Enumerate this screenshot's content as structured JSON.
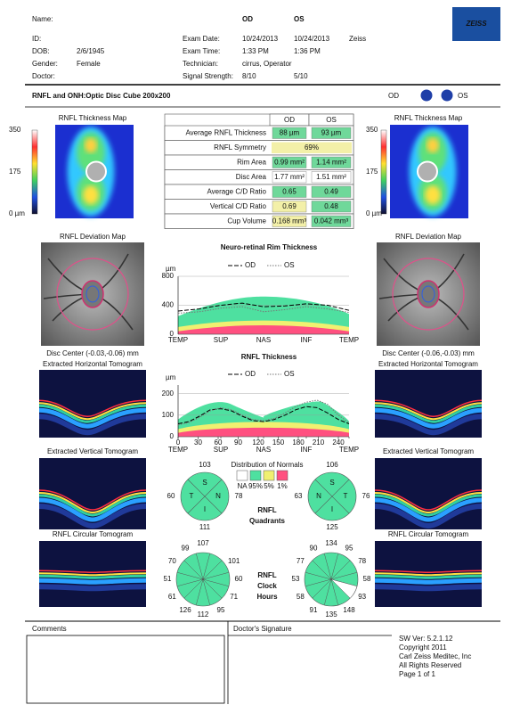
{
  "logo": "ZEISS",
  "patient": {
    "name_label": "Name:",
    "id_label": "ID:",
    "dob_label": "DOB:",
    "dob": "2/6/1945",
    "gender_label": "Gender:",
    "gender": "Female",
    "doctor_label": "Doctor:"
  },
  "exam": {
    "od": "OD",
    "os": "OS",
    "rows": [
      [
        "Exam Date:",
        "10/24/2013",
        "10/24/2013",
        "Zeiss"
      ],
      [
        "Exam Time:",
        "1:33 PM",
        "1:36 PM"
      ],
      [
        "Technician:",
        "cirrus, Operator"
      ],
      [
        "Signal Strength:",
        "8/10",
        "5/10"
      ]
    ]
  },
  "title": {
    "text": "RNFL and ONH:Optic Disc Cube 200x200",
    "od": "OD",
    "os": "OS"
  },
  "table": {
    "header": [
      "OD",
      "OS"
    ],
    "rows": [
      {
        "cells": [
          "Average RNFL Thickness",
          "88 µm",
          "93 µm"
        ],
        "colors": [
          "#6fd89a",
          "#6fd89a"
        ]
      },
      {
        "cells": [
          "RNFL Symmetry",
          "69%"
        ],
        "colors": [
          "#f3f0a8"
        ]
      },
      {
        "cells": [
          "Rim Area",
          "0.99 mm²",
          "1.14 mm²"
        ],
        "colors": [
          "#6fd89a",
          "#6fd89a"
        ]
      },
      {
        "cells": [
          "Disc Area",
          "1.77 mm²",
          "1.51 mm²"
        ],
        "colors": [
          "#ffffff",
          "#ffffff"
        ]
      },
      {
        "cells": [
          "Average C/D Ratio",
          "0.65",
          "0.49"
        ],
        "colors": [
          "#6fd89a",
          "#6fd89a"
        ]
      },
      {
        "cells": [
          "Vertical C/D Ratio",
          "0.69",
          "0.48"
        ],
        "colors": [
          "#f3f0a8",
          "#6fd89a"
        ]
      },
      {
        "cells": [
          "Cup Volume",
          "0.168 mm³",
          "0.042 mm³"
        ],
        "colors": [
          "#f3f0a8",
          "#6fd89a"
        ]
      }
    ]
  },
  "left": {
    "thickness_map": "RNFL Thickness Map",
    "scale": [
      "350",
      "175",
      "0 µm"
    ],
    "deviation_map": "RNFL Deviation Map",
    "disc_center": "Disc Center  (-0.03,-0.06) mm",
    "horizontal_tomogram": "Extracted Horizontal Tomogram",
    "vertical_tomogram": "Extracted Vertical Tomogram",
    "circular_tomogram": "RNFL Circular Tomogram"
  },
  "right": {
    "thickness_map": "RNFL Thickness Map",
    "scale": [
      "350",
      "175",
      "0 µm"
    ],
    "deviation_map": "RNFL Deviation Map",
    "disc_center": "Disc Center  (-0.06,-0.03) mm",
    "horizontal_tomogram": "Extracted Horizontal Tomogram",
    "vertical_tomogram": "Extracted Vertical Tomogram",
    "circular_tomogram": "RNFL Circular Tomogram"
  },
  "chart_data": [
    {
      "type": "line",
      "title": "Neuro-retinal Rim Thickness",
      "y_label": "µm",
      "categories": [
        "TEMP",
        null,
        "SUP",
        null,
        "NAS",
        null,
        "INF",
        null,
        "TEMP"
      ],
      "series": [
        {
          "name": "OD",
          "color": "#000000",
          "line_style": "dashed",
          "values": [
            320,
            350,
            400,
            430,
            380,
            390,
            420,
            400,
            330
          ]
        },
        {
          "name": "OS",
          "color": "#777777",
          "line_style": "dotted",
          "values": [
            290,
            310,
            360,
            380,
            310,
            340,
            380,
            350,
            300
          ]
        }
      ],
      "ylim": [
        0,
        800
      ],
      "yticks": [
        0,
        400,
        800
      ],
      "grid": true
    },
    {
      "type": "line",
      "title": "RNFL Thickness",
      "y_label": "µm",
      "x": [
        0,
        16,
        32,
        48,
        64,
        80,
        96,
        112,
        128,
        144,
        160,
        176,
        192,
        208,
        224,
        240,
        256
      ],
      "xlim": [
        0,
        256
      ],
      "xticks": [
        0,
        30,
        60,
        90,
        120,
        150,
        180,
        210,
        240
      ],
      "x_sections": [
        {
          "value": 0,
          "label": "TEMP"
        },
        {
          "value": 64,
          "label": "SUP"
        },
        {
          "value": 128,
          "label": "NAS"
        },
        {
          "value": 192,
          "label": "INF"
        },
        {
          "value": 256,
          "label": "TEMP"
        }
      ],
      "series": [
        {
          "name": "OD",
          "color": "#000000",
          "line_style": "dashed",
          "values": [
            60,
            70,
            95,
            125,
            130,
            120,
            95,
            75,
            70,
            80,
            100,
            125,
            140,
            135,
            110,
            80,
            60
          ]
        },
        {
          "name": "OS",
          "color": "#777777",
          "line_style": "dotted",
          "values": [
            55,
            65,
            90,
            120,
            135,
            125,
            100,
            80,
            75,
            85,
            110,
            140,
            160,
            170,
            150,
            100,
            65
          ]
        }
      ],
      "ylim": [
        0,
        240
      ],
      "yticks": [
        0,
        100,
        200
      ],
      "grid": true
    }
  ],
  "normals": {
    "title": "Distribution of Normals",
    "labels": [
      "NA",
      "95%",
      "5%",
      "1%"
    ]
  },
  "quadrants": {
    "title": [
      "RNFL",
      "Quadrants"
    ],
    "od": {
      "letters": {
        "top": "S",
        "left": "T",
        "right": "N",
        "bottom": "I"
      },
      "values": {
        "top": 103,
        "left": 60,
        "right": 78,
        "bottom": 111
      }
    },
    "os": {
      "letters": {
        "top": "S",
        "left": "N",
        "right": "T",
        "bottom": "I"
      },
      "values": {
        "top": 106,
        "left": 63,
        "right": 76,
        "bottom": 125
      }
    }
  },
  "clock_hours": {
    "title": [
      "RNFL",
      "Clock",
      "Hours"
    ],
    "od": [
      107,
      null,
      101,
      60,
      71,
      95,
      112,
      126,
      61,
      51,
      70,
      99
    ],
    "os": [
      134,
      95,
      78,
      58,
      93,
      148,
      135,
      91,
      58,
      53,
      77,
      90
    ]
  },
  "footer": {
    "comments": "Comments",
    "signature": "Doctor's Signature",
    "info": [
      "SW Ver: 5.2.1.12",
      "Copyright 2011",
      "Carl Zeiss Meditec, Inc",
      "All Rights Reserved",
      "Page 1 of 1"
    ]
  }
}
